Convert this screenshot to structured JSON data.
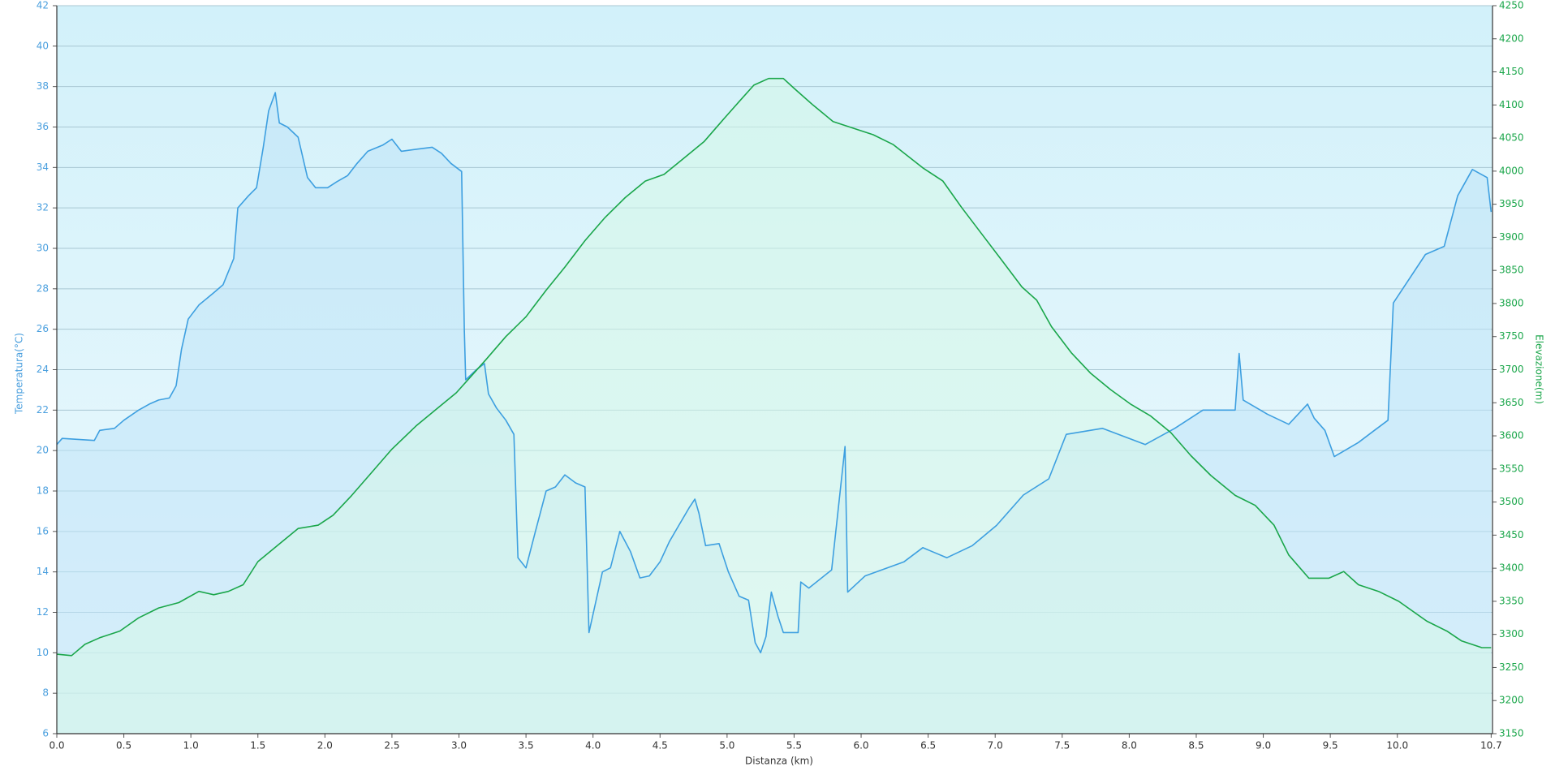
{
  "chart_data": {
    "type": "line",
    "x_label": "Distanza  (km)",
    "y_label": "Temperatura(°C)",
    "y2_label": "Elevazione(m)",
    "xlim": [
      0,
      10.71
    ],
    "xticks": [
      {
        "value": 0,
        "label": "0.0"
      },
      0.5,
      {
        "value": 1,
        "label": "1.0"
      },
      1.5,
      {
        "value": 2,
        "label": "2.0"
      },
      2.5,
      {
        "value": 3,
        "label": "3.0"
      },
      3.5,
      {
        "value": 4,
        "label": "4.0"
      },
      4.5,
      {
        "value": 5,
        "label": "5.0"
      },
      5.5,
      {
        "value": 6,
        "label": "6.0"
      },
      6.5,
      {
        "value": 7,
        "label": "7.0"
      },
      7.5,
      {
        "value": 8,
        "label": "8.0"
      },
      8.5,
      {
        "value": 9,
        "label": "9.0"
      },
      9.5,
      {
        "value": 10,
        "label": "10.0"
      },
      10.7
    ],
    "ylim": [
      6,
      42
    ],
    "yticks": [
      6,
      8,
      10,
      12,
      14,
      16,
      18,
      20,
      22,
      24,
      26,
      28,
      30,
      32,
      34,
      36,
      38,
      40,
      42
    ],
    "y2lim": [
      3150,
      4250
    ],
    "y2ticks": [
      3150,
      3200,
      3250,
      3300,
      3350,
      3400,
      3450,
      3500,
      3550,
      3600,
      3650,
      3700,
      3750,
      3800,
      3850,
      3900,
      3950,
      4000,
      4050,
      4100,
      4150,
      4200,
      4250
    ],
    "grid": true,
    "series": [
      {
        "color": "#3d9fe0",
        "fill": "#bfe3f8",
        "x": [
          0,
          0.04,
          0.28,
          0.32,
          0.43,
          0.5,
          0.61,
          0.69,
          0.76,
          0.84,
          0.89,
          0.93,
          0.98,
          1.06,
          1.17,
          1.24,
          1.32,
          1.35,
          1.43,
          1.49,
          1.54,
          1.58,
          1.63,
          1.66,
          1.72,
          1.8,
          1.87,
          1.93,
          2.02,
          2.09,
          2.17,
          2.24,
          2.32,
          2.43,
          2.5,
          2.57,
          2.68,
          2.8,
          2.87,
          2.94,
          3.02,
          3.04,
          3.05,
          3.13,
          3.19,
          3.22,
          3.28,
          3.35,
          3.41,
          3.44,
          3.5,
          3.57,
          3.65,
          3.72,
          3.79,
          3.87,
          3.94,
          3.97,
          4.02,
          4.07,
          4.13,
          4.2,
          4.28,
          4.35,
          4.42,
          4.5,
          4.57,
          4.64,
          4.72,
          4.76,
          4.79,
          4.84,
          4.94,
          5.01,
          5.09,
          5.16,
          5.21,
          5.25,
          5.29,
          5.33,
          5.38,
          5.42,
          5.53,
          5.55,
          5.61,
          5.78,
          5.88,
          5.9,
          6.03,
          6.32,
          6.46,
          6.64,
          6.83,
          7.01,
          7.21,
          7.4,
          7.53,
          7.8,
          8.12,
          8.34,
          8.55,
          8.79,
          8.82,
          8.85,
          9.03,
          9.19,
          9.33,
          9.38,
          9.46,
          9.53,
          9.71,
          9.81,
          9.93,
          9.97,
          10.21,
          10.35,
          10.45,
          10.56,
          10.67,
          10.7
        ],
        "values": [
          20.3,
          20.6,
          20.5,
          21.0,
          21.1,
          21.5,
          22.0,
          22.3,
          22.5,
          22.6,
          23.2,
          25.0,
          26.5,
          27.2,
          27.8,
          28.2,
          29.5,
          32.0,
          32.6,
          33.0,
          35.0,
          36.8,
          37.7,
          36.2,
          36.0,
          35.5,
          33.5,
          33.0,
          33.0,
          33.3,
          33.6,
          34.2,
          34.8,
          35.1,
          35.4,
          34.8,
          34.9,
          35.0,
          34.7,
          34.2,
          33.8,
          26.0,
          23.5,
          24.0,
          24.3,
          22.8,
          22.1,
          21.5,
          20.8,
          14.7,
          14.2,
          16.0,
          18.0,
          18.2,
          18.8,
          18.4,
          18.2,
          11.0,
          12.5,
          14.0,
          14.2,
          16.0,
          15.0,
          13.7,
          13.8,
          14.5,
          15.5,
          16.3,
          17.2,
          17.6,
          16.9,
          15.3,
          15.4,
          14.0,
          12.8,
          12.6,
          10.5,
          10.0,
          10.8,
          13.0,
          11.8,
          11.0,
          11.0,
          13.5,
          13.2,
          14.1,
          20.2,
          13.0,
          13.8,
          14.5,
          15.2,
          14.7,
          15.3,
          16.3,
          17.8,
          18.6,
          20.8,
          21.1,
          20.3,
          21.1,
          22.0,
          22.0,
          24.8,
          22.5,
          21.8,
          21.3,
          22.3,
          21.6,
          21.0,
          19.7,
          20.4,
          20.9,
          21.5,
          27.3,
          29.7,
          30.1,
          32.6,
          33.9,
          33.5,
          31.8
        ]
      },
      {
        "color": "#1aa64a",
        "fill": "#d6f7e8",
        "axis": "y2",
        "x": [
          0,
          0.11,
          0.21,
          0.32,
          0.47,
          0.61,
          0.76,
          0.91,
          1.06,
          1.17,
          1.28,
          1.39,
          1.5,
          1.65,
          1.8,
          1.95,
          2.06,
          2.2,
          2.35,
          2.5,
          2.68,
          2.83,
          2.98,
          3.09,
          3.2,
          3.35,
          3.5,
          3.65,
          3.79,
          3.94,
          4.09,
          4.24,
          4.39,
          4.53,
          4.68,
          4.83,
          4.98,
          5.09,
          5.2,
          5.31,
          5.42,
          5.5,
          5.64,
          5.79,
          5.94,
          6.09,
          6.24,
          6.46,
          6.61,
          6.75,
          6.9,
          7.05,
          7.2,
          7.31,
          7.42,
          7.57,
          7.71,
          7.86,
          8.01,
          8.16,
          8.31,
          8.46,
          8.61,
          8.79,
          8.94,
          9.08,
          9.19,
          9.34,
          9.49,
          9.6,
          9.71,
          9.86,
          10.01,
          10.22,
          10.37,
          10.48,
          10.63,
          10.7
        ],
        "values": [
          3270,
          3268,
          3285,
          3295,
          3305,
          3325,
          3340,
          3348,
          3365,
          3360,
          3365,
          3375,
          3410,
          3435,
          3460,
          3465,
          3480,
          3510,
          3545,
          3580,
          3615,
          3640,
          3665,
          3690,
          3715,
          3750,
          3780,
          3820,
          3855,
          3895,
          3930,
          3960,
          3985,
          3995,
          4020,
          4045,
          4080,
          4105,
          4130,
          4140,
          4140,
          4125,
          4100,
          4075,
          4065,
          4055,
          4040,
          4005,
          3985,
          3945,
          3905,
          3865,
          3825,
          3805,
          3765,
          3725,
          3695,
          3670,
          3648,
          3630,
          3605,
          3570,
          3540,
          3510,
          3495,
          3465,
          3420,
          3385,
          3385,
          3395,
          3375,
          3365,
          3350,
          3320,
          3305,
          3290,
          3280,
          3280
        ]
      }
    ]
  }
}
